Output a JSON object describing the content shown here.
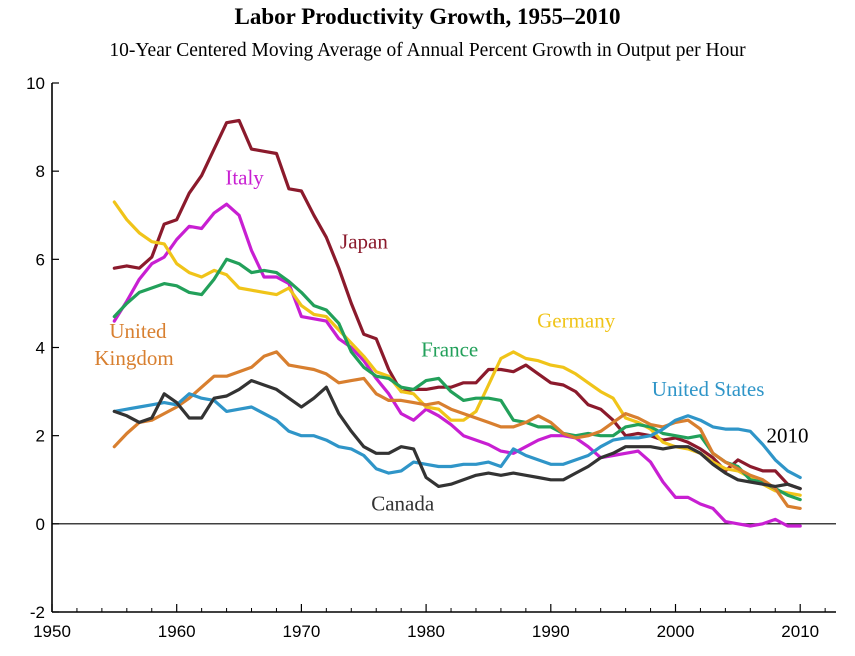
{
  "chart_data": {
    "type": "line",
    "title": "Labor Productivity Growth, 1955–2010",
    "subtitle": "10-Year Centered Moving Average of Annual Percent Growth in Output per Hour",
    "xlim": [
      1950,
      2013
    ],
    "ylim": [
      -2,
      10
    ],
    "x_ticks": [
      1950,
      1960,
      1970,
      1980,
      1990,
      2000,
      2010
    ],
    "y_ticks": [
      -2,
      0,
      2,
      4,
      6,
      8,
      10
    ],
    "x_tick_labels": [
      "1950",
      "1960",
      "1970",
      "1980",
      "1990",
      "2000",
      "2010"
    ],
    "y_tick_labels": [
      "-2",
      "0",
      "2",
      "4",
      "6",
      "8",
      "10"
    ],
    "end_label": "2010",
    "grid": false,
    "legend": "inline labels",
    "series": [
      {
        "name": "Japan",
        "color": "#8b1a2c",
        "x": [
          1955,
          1956,
          1957,
          1958,
          1959,
          1960,
          1961,
          1962,
          1963,
          1964,
          1965,
          1966,
          1967,
          1968,
          1969,
          1970,
          1971,
          1972,
          1973,
          1974,
          1975,
          1976,
          1977,
          1978,
          1979,
          1980,
          1981,
          1982,
          1983,
          1984,
          1985,
          1986,
          1987,
          1988,
          1989,
          1990,
          1991,
          1992,
          1993,
          1994,
          1995,
          1996,
          1997,
          1998,
          1999,
          2000,
          2001,
          2002,
          2003,
          2004,
          2005,
          2006,
          2007,
          2008,
          2009,
          2010
        ],
        "y": [
          5.8,
          5.85,
          5.8,
          6.05,
          6.8,
          6.9,
          7.5,
          7.9,
          8.5,
          9.1,
          9.15,
          8.5,
          8.45,
          8.4,
          7.6,
          7.55,
          7.0,
          6.5,
          5.8,
          5.0,
          4.3,
          4.2,
          3.5,
          3.0,
          3.05,
          3.05,
          3.1,
          3.1,
          3.2,
          3.2,
          3.5,
          3.5,
          3.45,
          3.6,
          3.4,
          3.2,
          3.15,
          3.0,
          2.7,
          2.6,
          2.35,
          2.0,
          2.05,
          2.0,
          1.9,
          1.95,
          1.85,
          1.7,
          1.5,
          1.2,
          1.45,
          1.3,
          1.2,
          1.2,
          0.9,
          0.8
        ]
      },
      {
        "name": "Italy",
        "color": "#c81fd2",
        "x": [
          1955,
          1956,
          1957,
          1958,
          1959,
          1960,
          1961,
          1962,
          1963,
          1964,
          1965,
          1966,
          1967,
          1968,
          1969,
          1970,
          1971,
          1972,
          1973,
          1974,
          1975,
          1976,
          1977,
          1978,
          1979,
          1980,
          1981,
          1982,
          1983,
          1984,
          1985,
          1986,
          1987,
          1988,
          1989,
          1990,
          1991,
          1992,
          1993,
          1994,
          1995,
          1996,
          1997,
          1998,
          1999,
          2000,
          2001,
          2002,
          2003,
          2004,
          2005,
          2006,
          2007,
          2008,
          2009,
          2010
        ],
        "y": [
          4.6,
          5.05,
          5.55,
          5.9,
          6.05,
          6.45,
          6.75,
          6.7,
          7.05,
          7.25,
          7.0,
          6.2,
          5.6,
          5.6,
          5.45,
          4.7,
          4.65,
          4.6,
          4.2,
          4.0,
          3.7,
          3.3,
          2.95,
          2.5,
          2.35,
          2.6,
          2.45,
          2.25,
          2.0,
          1.9,
          1.8,
          1.65,
          1.6,
          1.75,
          1.9,
          2.0,
          2.0,
          1.95,
          1.75,
          1.5,
          1.55,
          1.6,
          1.65,
          1.4,
          0.95,
          0.6,
          0.6,
          0.45,
          0.35,
          0.05,
          0.0,
          -0.05,
          0.0,
          0.1,
          -0.05,
          -0.05
        ]
      },
      {
        "name": "Germany",
        "color": "#f0c419",
        "x": [
          1955,
          1956,
          1957,
          1958,
          1959,
          1960,
          1961,
          1962,
          1963,
          1964,
          1965,
          1966,
          1967,
          1968,
          1969,
          1970,
          1971,
          1972,
          1973,
          1974,
          1975,
          1976,
          1977,
          1978,
          1979,
          1980,
          1981,
          1982,
          1983,
          1984,
          1985,
          1986,
          1987,
          1988,
          1989,
          1990,
          1991,
          1992,
          1993,
          1994,
          1995,
          1996,
          1997,
          1998,
          1999,
          2000,
          2001,
          2002,
          2003,
          2004,
          2005,
          2006,
          2007,
          2008,
          2009,
          2010
        ],
        "y": [
          7.3,
          6.9,
          6.6,
          6.4,
          6.35,
          5.9,
          5.7,
          5.6,
          5.75,
          5.65,
          5.35,
          5.3,
          5.25,
          5.2,
          5.35,
          4.95,
          4.75,
          4.7,
          4.4,
          4.1,
          3.8,
          3.45,
          3.35,
          3.0,
          2.95,
          2.65,
          2.6,
          2.35,
          2.35,
          2.55,
          3.15,
          3.75,
          3.9,
          3.75,
          3.7,
          3.6,
          3.55,
          3.4,
          3.2,
          3.0,
          2.85,
          2.4,
          2.3,
          2.15,
          1.85,
          1.75,
          1.7,
          1.6,
          1.4,
          1.25,
          1.2,
          1.05,
          0.9,
          0.75,
          0.7,
          0.65
        ]
      },
      {
        "name": "France",
        "color": "#22a05a",
        "x": [
          1955,
          1956,
          1957,
          1958,
          1959,
          1960,
          1961,
          1962,
          1963,
          1964,
          1965,
          1966,
          1967,
          1968,
          1969,
          1970,
          1971,
          1972,
          1973,
          1974,
          1975,
          1976,
          1977,
          1978,
          1979,
          1980,
          1981,
          1982,
          1983,
          1984,
          1985,
          1986,
          1987,
          1988,
          1989,
          1990,
          1991,
          1992,
          1993,
          1994,
          1995,
          1996,
          1997,
          1998,
          1999,
          2000,
          2001,
          2002,
          2003,
          2004,
          2005,
          2006,
          2007,
          2008,
          2009,
          2010
        ],
        "y": [
          4.7,
          5.0,
          5.25,
          5.35,
          5.45,
          5.4,
          5.25,
          5.2,
          5.55,
          6.0,
          5.9,
          5.7,
          5.75,
          5.7,
          5.5,
          5.25,
          4.95,
          4.85,
          4.55,
          3.9,
          3.55,
          3.35,
          3.3,
          3.1,
          3.05,
          3.25,
          3.3,
          3.0,
          2.8,
          2.85,
          2.85,
          2.8,
          2.35,
          2.3,
          2.2,
          2.2,
          2.05,
          2.0,
          2.05,
          2.0,
          2.0,
          2.2,
          2.25,
          2.2,
          2.05,
          2.0,
          1.95,
          2.0,
          1.6,
          1.4,
          1.3,
          1.0,
          0.95,
          0.8,
          0.65,
          0.55
        ]
      },
      {
        "name": "United Kingdom",
        "color": "#d87f2f",
        "x": [
          1955,
          1956,
          1957,
          1958,
          1959,
          1960,
          1961,
          1962,
          1963,
          1964,
          1965,
          1966,
          1967,
          1968,
          1969,
          1970,
          1971,
          1972,
          1973,
          1974,
          1975,
          1976,
          1977,
          1978,
          1979,
          1980,
          1981,
          1982,
          1983,
          1984,
          1985,
          1986,
          1987,
          1988,
          1989,
          1990,
          1991,
          1992,
          1993,
          1994,
          1995,
          1996,
          1997,
          1998,
          1999,
          2000,
          2001,
          2002,
          2003,
          2004,
          2005,
          2006,
          2007,
          2008,
          2009,
          2010
        ],
        "y": [
          1.75,
          2.05,
          2.3,
          2.35,
          2.5,
          2.65,
          2.85,
          3.1,
          3.35,
          3.35,
          3.45,
          3.55,
          3.8,
          3.9,
          3.6,
          3.55,
          3.5,
          3.4,
          3.2,
          3.25,
          3.3,
          2.95,
          2.8,
          2.8,
          2.75,
          2.7,
          2.75,
          2.6,
          2.5,
          2.4,
          2.3,
          2.2,
          2.2,
          2.3,
          2.45,
          2.3,
          2.05,
          1.95,
          2.0,
          2.1,
          2.3,
          2.5,
          2.4,
          2.25,
          2.2,
          2.3,
          2.35,
          2.15,
          1.6,
          1.4,
          1.25,
          1.1,
          1.0,
          0.8,
          0.4,
          0.35
        ]
      },
      {
        "name": "United States",
        "color": "#2f95c8",
        "x": [
          1955,
          1956,
          1957,
          1958,
          1959,
          1960,
          1961,
          1962,
          1963,
          1964,
          1965,
          1966,
          1967,
          1968,
          1969,
          1970,
          1971,
          1972,
          1973,
          1974,
          1975,
          1976,
          1977,
          1978,
          1979,
          1980,
          1981,
          1982,
          1983,
          1984,
          1985,
          1986,
          1987,
          1988,
          1989,
          1990,
          1991,
          1992,
          1993,
          1994,
          1995,
          1996,
          1997,
          1998,
          1999,
          2000,
          2001,
          2002,
          2003,
          2004,
          2005,
          2006,
          2007,
          2008,
          2009,
          2010
        ],
        "y": [
          2.55,
          2.6,
          2.65,
          2.7,
          2.75,
          2.7,
          2.95,
          2.85,
          2.8,
          2.55,
          2.6,
          2.65,
          2.5,
          2.35,
          2.1,
          2.0,
          2.0,
          1.9,
          1.75,
          1.7,
          1.55,
          1.25,
          1.15,
          1.2,
          1.4,
          1.35,
          1.3,
          1.3,
          1.35,
          1.35,
          1.4,
          1.3,
          1.7,
          1.55,
          1.45,
          1.35,
          1.35,
          1.45,
          1.55,
          1.75,
          1.9,
          1.95,
          1.95,
          2.0,
          2.15,
          2.35,
          2.45,
          2.35,
          2.2,
          2.15,
          2.15,
          2.1,
          1.8,
          1.45,
          1.2,
          1.05
        ]
      },
      {
        "name": "Canada",
        "color": "#333333",
        "x": [
          1955,
          1956,
          1957,
          1958,
          1959,
          1960,
          1961,
          1962,
          1963,
          1964,
          1965,
          1966,
          1967,
          1968,
          1969,
          1970,
          1971,
          1972,
          1973,
          1974,
          1975,
          1976,
          1977,
          1978,
          1979,
          1980,
          1981,
          1982,
          1983,
          1984,
          1985,
          1986,
          1987,
          1988,
          1989,
          1990,
          1991,
          1992,
          1993,
          1994,
          1995,
          1996,
          1997,
          1998,
          1999,
          2000,
          2001,
          2002,
          2003,
          2004,
          2005,
          2006,
          2007,
          2008,
          2009,
          2010
        ],
        "y": [
          2.55,
          2.45,
          2.3,
          2.4,
          2.95,
          2.75,
          2.4,
          2.4,
          2.85,
          2.9,
          3.05,
          3.25,
          3.15,
          3.05,
          2.85,
          2.65,
          2.85,
          3.1,
          2.5,
          2.1,
          1.75,
          1.6,
          1.6,
          1.75,
          1.7,
          1.05,
          0.85,
          0.9,
          1.0,
          1.1,
          1.15,
          1.1,
          1.15,
          1.1,
          1.05,
          1.0,
          1.0,
          1.15,
          1.3,
          1.5,
          1.6,
          1.75,
          1.75,
          1.75,
          1.7,
          1.75,
          1.75,
          1.6,
          1.35,
          1.15,
          1.0,
          0.95,
          0.9,
          0.85,
          0.9,
          0.8
        ]
      }
    ],
    "labels": [
      {
        "text": "Japan",
        "series": "Japan",
        "x": 1973.1,
        "y": 6.25
      },
      {
        "text": "Italy",
        "series": "Italy",
        "x": 1963.9,
        "y": 7.7
      },
      {
        "text": "Germany",
        "series": "Germany",
        "x": 1988.9,
        "y": 4.45
      },
      {
        "text": "France",
        "series": "France",
        "x": 1979.6,
        "y": 3.8
      },
      {
        "text": "United",
        "series": "United Kingdom",
        "x": 1954.6,
        "y": 4.22
      },
      {
        "text": "Kingdom",
        "series": "United Kingdom",
        "x": 1953.4,
        "y": 3.6
      },
      {
        "text": "United States",
        "series": "United States",
        "x": 1998.1,
        "y": 2.9
      },
      {
        "text": "Canada",
        "series": "Canada",
        "x": 1975.6,
        "y": 0.3
      }
    ]
  }
}
